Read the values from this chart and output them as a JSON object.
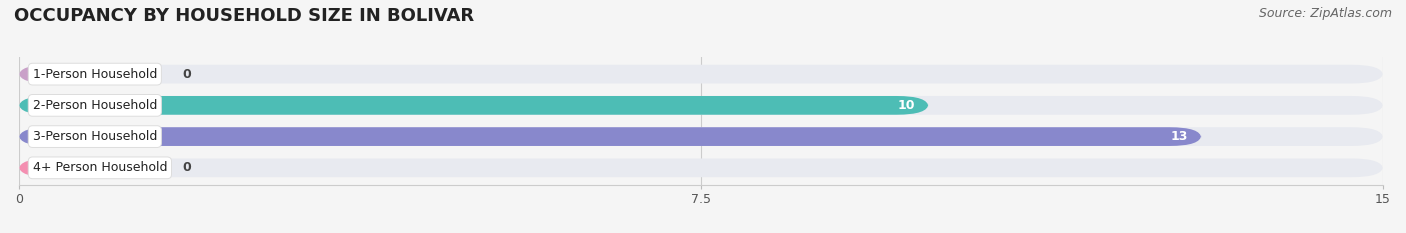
{
  "title": "OCCUPANCY BY HOUSEHOLD SIZE IN BOLIVAR",
  "source": "Source: ZipAtlas.com",
  "categories": [
    "1-Person Household",
    "2-Person Household",
    "3-Person Household",
    "4+ Person Household"
  ],
  "values": [
    0,
    10,
    13,
    0
  ],
  "bar_colors": [
    "#c9a0c8",
    "#4dbdb5",
    "#8888cc",
    "#f48fb1"
  ],
  "zero_bar_width": 1.5,
  "xlim": [
    0,
    15
  ],
  "xticks": [
    0,
    7.5,
    15
  ],
  "figsize": [
    14.06,
    2.33
  ],
  "dpi": 100,
  "title_fontsize": 13,
  "source_fontsize": 9,
  "bar_label_fontsize": 9,
  "category_fontsize": 9,
  "bar_height": 0.6,
  "bg_bar_color": "#e8eaf0",
  "background_color": "#f5f5f5",
  "label_box_color": "#ffffff",
  "label_box_edge": "#dddddd"
}
